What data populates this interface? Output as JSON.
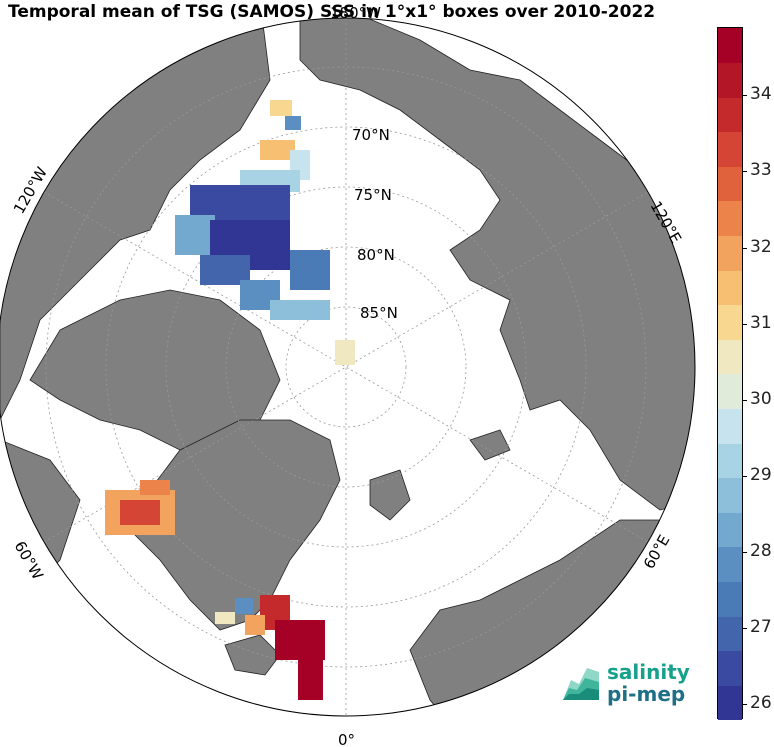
{
  "title": "Temporal mean of TSG (SAMOS) SSS in 1°x1° boxes over 2010-2022",
  "map": {
    "projection": "north-polar-stereographic",
    "latitude_labels": [
      "70°N",
      "75°N",
      "80°N",
      "85°N"
    ],
    "longitude_labels": [
      "180°W",
      "120°W",
      "60°W",
      "0°",
      "60°E",
      "120°E"
    ],
    "land_color": "#808080",
    "ocean_color": "#ffffff",
    "grid_style": "dotted"
  },
  "colorbar": {
    "min": 25.8,
    "max": 34.9,
    "ticks": [
      "26",
      "27",
      "28",
      "29",
      "30",
      "31",
      "32",
      "33",
      "34"
    ],
    "colors": [
      "#313695",
      "#3a4aa0",
      "#4265ac",
      "#4a7bb7",
      "#5b8fc2",
      "#74a9cf",
      "#8ebfda",
      "#a8d3e5",
      "#c6e3ee",
      "#e0ecd9",
      "#f0e8c0",
      "#f8d890",
      "#f6bf72",
      "#f2a35d",
      "#ec834b",
      "#e0623d",
      "#d44535",
      "#c4292c",
      "#b31627",
      "#a50026"
    ]
  },
  "logo": {
    "line1": "salinity",
    "line2": "pi-mep"
  }
}
